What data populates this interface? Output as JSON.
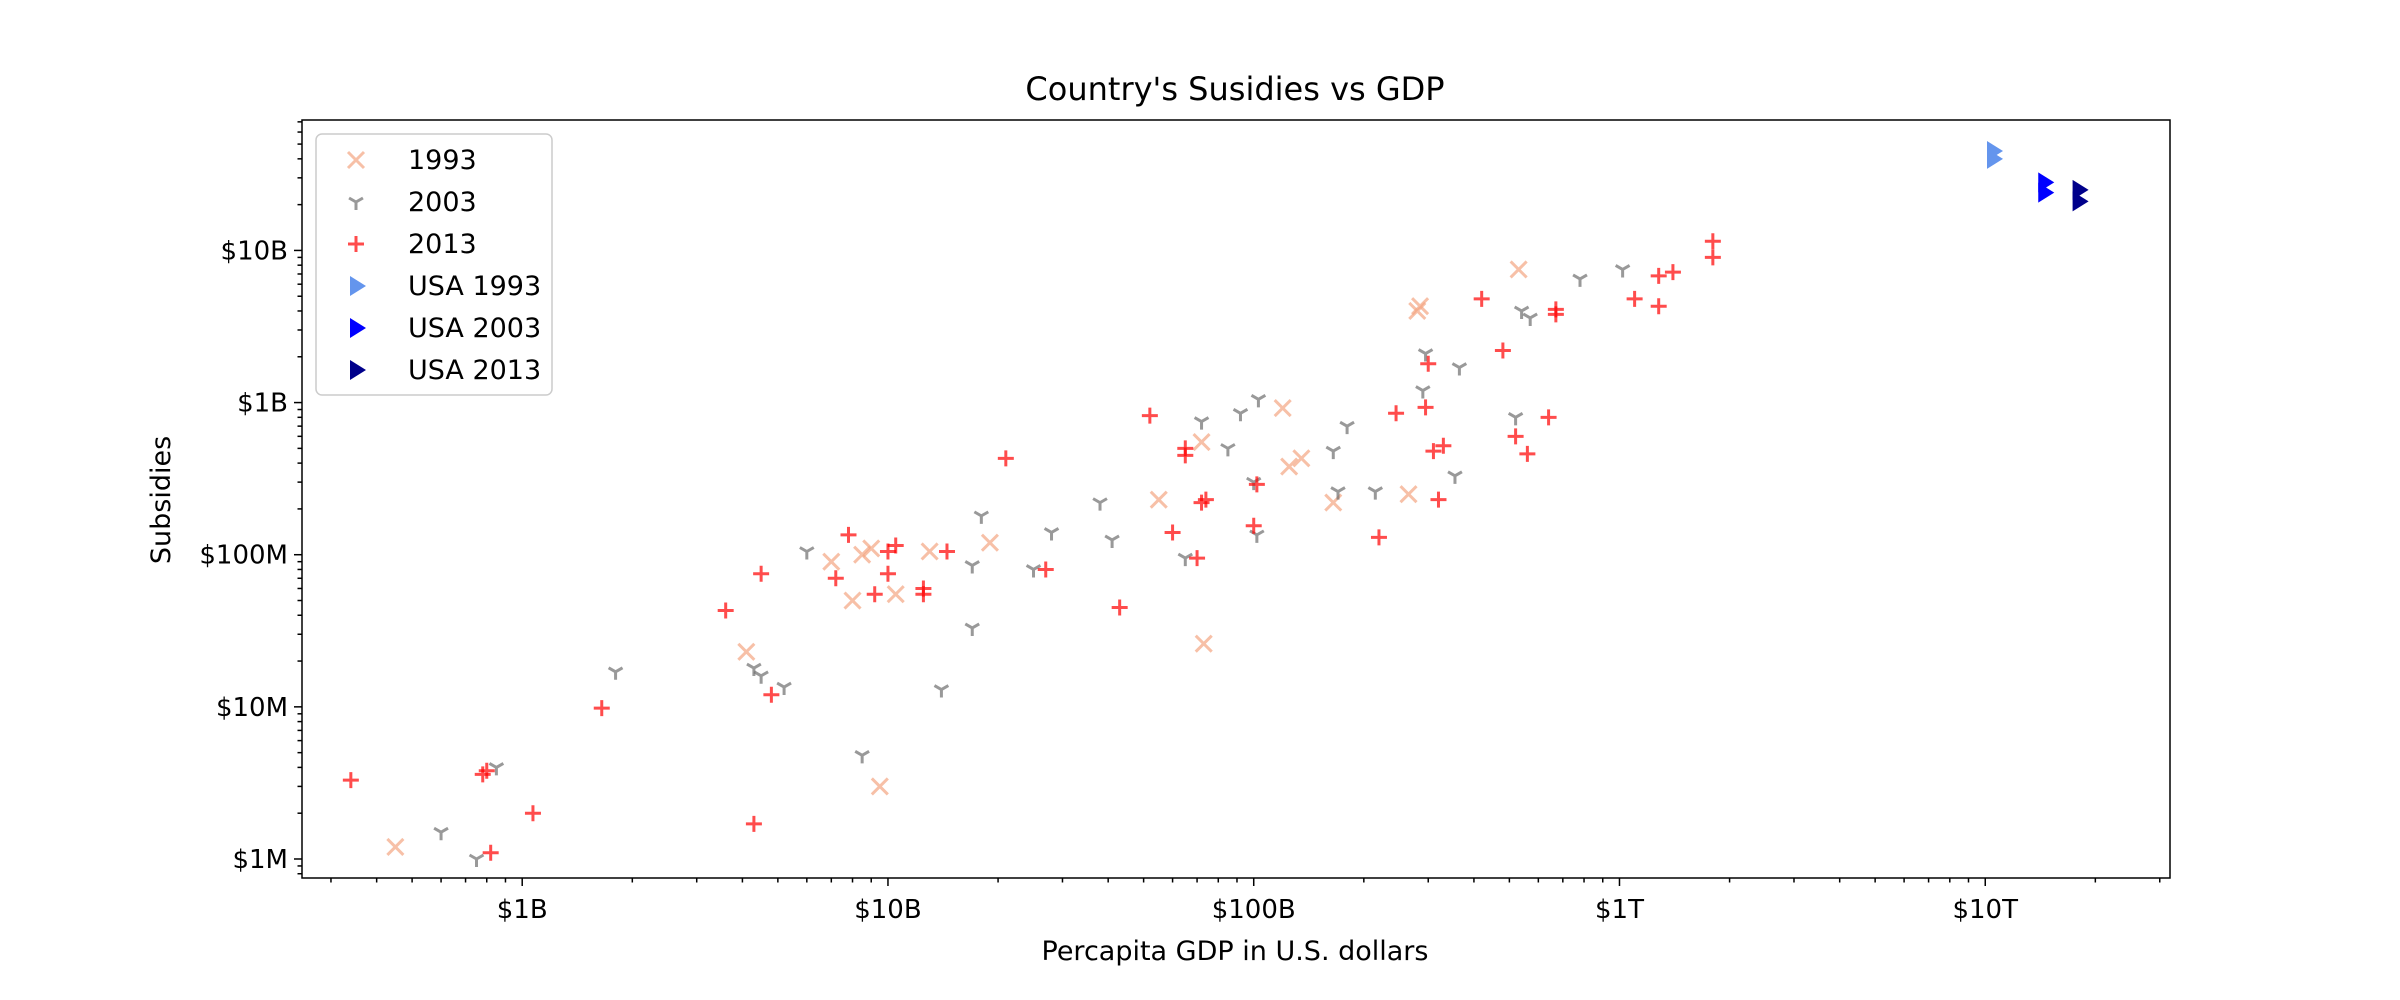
{
  "chart_data": {
    "type": "scatter",
    "title": "Country's Susidies vs GDP",
    "xlabel": "Percapita GDP in U.S. dollars",
    "ylabel": "Subsidies",
    "x_scale": "log",
    "y_scale": "log",
    "xlim": [
      250000000.0,
      32000000000000.0
    ],
    "ylim": [
      750000.0,
      72000000000.0
    ],
    "x_ticks": [
      {
        "value": 1000000000.0,
        "label": "$1B"
      },
      {
        "value": 10000000000.0,
        "label": "$10B"
      },
      {
        "value": 100000000000.0,
        "label": "$100B"
      },
      {
        "value": 1000000000000.0,
        "label": "$1T"
      },
      {
        "value": 10000000000000.0,
        "label": "$10T"
      }
    ],
    "y_ticks": [
      {
        "value": 1000000.0,
        "label": "$1M"
      },
      {
        "value": 10000000.0,
        "label": "$10M"
      },
      {
        "value": 100000000.0,
        "label": "$100M"
      },
      {
        "value": 1000000000.0,
        "label": "$1B"
      },
      {
        "value": 10000000000.0,
        "label": "$10B"
      }
    ],
    "grid": false,
    "legend_position": "top-left",
    "series": [
      {
        "name": "1993",
        "marker": "x",
        "color": "#f4a582",
        "points": [
          [
            450000000.0,
            1200000.0
          ],
          [
            4100000000.0,
            23000000.0
          ],
          [
            7000000000.0,
            90000000.0
          ],
          [
            8000000000.0,
            50000000.0
          ],
          [
            8500000000.0,
            100000000.0
          ],
          [
            9000000000.0,
            110000000.0
          ],
          [
            9500000000.0,
            3000000.0
          ],
          [
            10500000000.0,
            55000000.0
          ],
          [
            13000000000.0,
            105000000.0
          ],
          [
            19000000000.0,
            120000000.0
          ],
          [
            55000000000.0,
            230000000.0
          ],
          [
            72000000000.0,
            550000000.0
          ],
          [
            73000000000.0,
            26000000.0
          ],
          [
            120000000000.0,
            920000000.0
          ],
          [
            125000000000.0,
            380000000.0
          ],
          [
            135000000000.0,
            430000000.0
          ],
          [
            165000000000.0,
            220000000.0
          ],
          [
            265000000000.0,
            250000000.0
          ],
          [
            280000000000.0,
            4000000000.0
          ],
          [
            285000000000.0,
            4300000000.0
          ],
          [
            530000000000.0,
            7500000000.0
          ]
        ]
      },
      {
        "name": "2003",
        "marker": "tri_down",
        "color": "#6e6e6e",
        "points": [
          [
            600000000.0,
            1500000.0
          ],
          [
            750000000.0,
            1000000.0
          ],
          [
            850000000.0,
            4000000.0
          ],
          [
            1800000000.0,
            17000000.0
          ],
          [
            4300000000.0,
            18000000.0
          ],
          [
            4500000000.0,
            16000000.0
          ],
          [
            5200000000.0,
            13500000.0
          ],
          [
            6000000000.0,
            105000000.0
          ],
          [
            8500000000.0,
            4800000.0
          ],
          [
            14000000000.0,
            13000000.0
          ],
          [
            17000000000.0,
            85000000.0
          ],
          [
            17000000000.0,
            33000000.0
          ],
          [
            18000000000.0,
            180000000.0
          ],
          [
            25000000000.0,
            80000000.0
          ],
          [
            28000000000.0,
            140000000.0
          ],
          [
            38000000000.0,
            220000000.0
          ],
          [
            41000000000.0,
            125000000.0
          ],
          [
            65000000000.0,
            95000000.0
          ],
          [
            72000000000.0,
            750000000.0
          ],
          [
            85000000000.0,
            500000000.0
          ],
          [
            92000000000.0,
            850000000.0
          ],
          [
            100000000000.0,
            300000000.0
          ],
          [
            102000000000.0,
            135000000.0
          ],
          [
            103000000000.0,
            1050000000.0
          ],
          [
            165000000000.0,
            480000000.0
          ],
          [
            170000000000.0,
            260000000.0
          ],
          [
            180000000000.0,
            700000000.0
          ],
          [
            215000000000.0,
            260000000.0
          ],
          [
            290000000000.0,
            1200000000.0
          ],
          [
            295000000000.0,
            2100000000.0
          ],
          [
            355000000000.0,
            330000000.0
          ],
          [
            365000000000.0,
            1700000000.0
          ],
          [
            520000000000.0,
            800000000.0
          ],
          [
            540000000000.0,
            4000000000.0
          ],
          [
            570000000000.0,
            3600000000.0
          ],
          [
            780000000000.0,
            6500000000.0
          ],
          [
            1020000000000.0,
            7500000000.0
          ]
        ]
      },
      {
        "name": "2013",
        "marker": "plus",
        "color": "#ff0000",
        "points": [
          [
            340000000.0,
            3300000.0
          ],
          [
            780000000.0,
            3600000.0
          ],
          [
            800000000.0,
            3800000.0
          ],
          [
            820000000.0,
            1100000.0
          ],
          [
            1070000000.0,
            2000000.0
          ],
          [
            1650000000.0,
            9800000.0
          ],
          [
            3600000000.0,
            43000000.0
          ],
          [
            4300000000.0,
            1700000.0
          ],
          [
            4500000000.0,
            75000000.0
          ],
          [
            4800000000.0,
            12000000.0
          ],
          [
            7200000000.0,
            70000000.0
          ],
          [
            7800000000.0,
            135000000.0
          ],
          [
            9200000000.0,
            55000000.0
          ],
          [
            10000000000.0,
            75000000.0
          ],
          [
            10000000000.0,
            105000000.0
          ],
          [
            10500000000.0,
            115000000.0
          ],
          [
            12500000000.0,
            55000000.0
          ],
          [
            12500000000.0,
            60000000.0
          ],
          [
            14500000000.0,
            105000000.0
          ],
          [
            21000000000.0,
            430000000.0
          ],
          [
            27000000000.0,
            80000000.0
          ],
          [
            43000000000.0,
            45000000.0
          ],
          [
            52000000000.0,
            820000000.0
          ],
          [
            60000000000.0,
            140000000.0
          ],
          [
            65000000000.0,
            450000000.0
          ],
          [
            65000000000.0,
            500000000.0
          ],
          [
            70000000000.0,
            95000000.0
          ],
          [
            72000000000.0,
            220000000.0
          ],
          [
            74000000000.0,
            230000000.0
          ],
          [
            100000000000.0,
            155000000.0
          ],
          [
            102000000000.0,
            290000000.0
          ],
          [
            220000000000.0,
            130000000.0
          ],
          [
            245000000000.0,
            850000000.0
          ],
          [
            295000000000.0,
            930000000.0
          ],
          [
            300000000000.0,
            1800000000.0
          ],
          [
            310000000000.0,
            480000000.0
          ],
          [
            320000000000.0,
            230000000.0
          ],
          [
            330000000000.0,
            520000000.0
          ],
          [
            420000000000.0,
            4800000000.0
          ],
          [
            480000000000.0,
            2200000000.0
          ],
          [
            520000000000.0,
            600000000.0
          ],
          [
            560000000000.0,
            460000000.0
          ],
          [
            640000000000.0,
            800000000.0
          ],
          [
            670000000000.0,
            3800000000.0
          ],
          [
            670000000000.0,
            4100000000.0
          ],
          [
            1100000000000.0,
            4800000000.0
          ],
          [
            1280000000000.0,
            6800000000.0
          ],
          [
            1280000000000.0,
            4300000000.0
          ],
          [
            1400000000000.0,
            7200000000.0
          ],
          [
            1800000000000.0,
            11500000000.0
          ],
          [
            1800000000000.0,
            9000000000.0
          ]
        ]
      },
      {
        "name": "USA 1993",
        "marker": "triangle_right",
        "color": "#6495ed",
        "points": [
          [
            10500000000000.0,
            40000000000.0
          ],
          [
            10500000000000.0,
            45000000000.0
          ]
        ]
      },
      {
        "name": "USA 2003",
        "marker": "triangle_right",
        "color": "#0000ff",
        "points": [
          [
            14500000000000.0,
            24000000000.0
          ],
          [
            14500000000000.0,
            28000000000.0
          ]
        ]
      },
      {
        "name": "USA 2013",
        "marker": "triangle_right",
        "color": "#00008b",
        "points": [
          [
            18000000000000.0,
            21000000000.0
          ],
          [
            18000000000000.0,
            25000000000.0
          ]
        ]
      }
    ]
  }
}
